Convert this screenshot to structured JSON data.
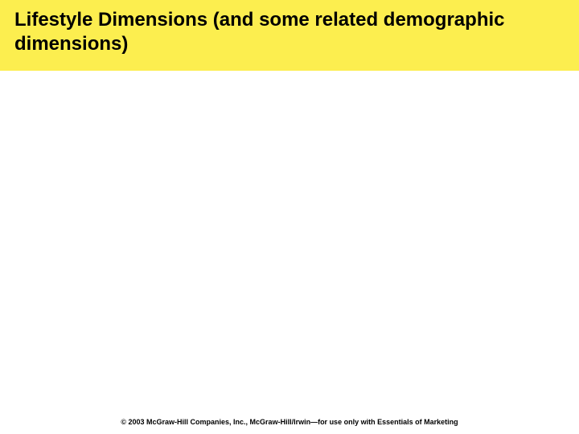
{
  "header": {
    "title": "Lifestyle Dimensions (and some related demographic dimensions)",
    "background_color": "#fcee4f",
    "title_color": "#000000",
    "title_fontsize": 24
  },
  "body": {
    "background_color": "#ffffff"
  },
  "footer": {
    "text": "© 2003 McGraw-Hill Companies, Inc., McGraw-Hill/Irwin—for use only with Essentials of Marketing",
    "color": "#000000",
    "fontsize": 9
  }
}
